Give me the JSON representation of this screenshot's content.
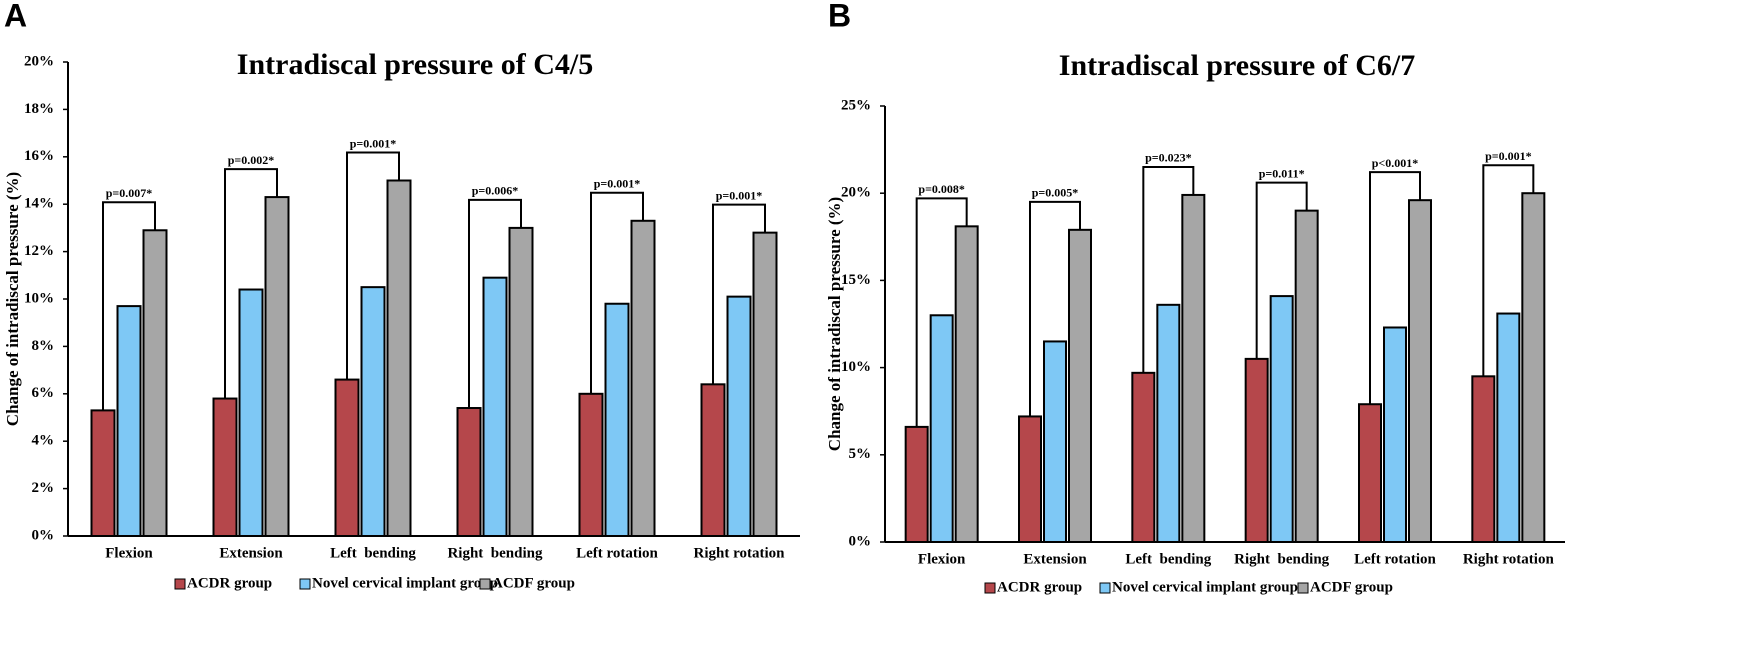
{
  "chart_data": [
    {
      "type": "bar",
      "panel": "A",
      "title": "Intradiscal pressure of C4/5",
      "y_label": "Change of intradiscal pressure (%)",
      "categories": [
        "Flexion",
        "Extension",
        "Left  bending",
        "Right  bending",
        "Left rotation",
        "Right rotation"
      ],
      "annotations": [
        "p=0.007*",
        "p=0.002*",
        "p=0.001*",
        "p=0.006*",
        "p=0.001*",
        "p=0.001*"
      ],
      "series": [
        {
          "name": "ACDR group",
          "color": "#b5474b",
          "values": [
            5.3,
            5.8,
            6.6,
            5.4,
            6.0,
            6.4
          ]
        },
        {
          "name": "Novel cervical implant group",
          "color": "#7ec8f5",
          "values": [
            9.7,
            10.4,
            10.5,
            10.9,
            9.8,
            10.1
          ]
        },
        {
          "name": "ACDF group",
          "color": "#a6a6a6",
          "values": [
            12.9,
            14.3,
            15.0,
            13.0,
            13.3,
            12.8
          ]
        }
      ],
      "ylim": [
        0,
        20
      ],
      "yticks": [
        {
          "value": 0,
          "label": "0%"
        },
        {
          "value": 2,
          "label": "2%"
        },
        {
          "value": 4,
          "label": "4%"
        },
        {
          "value": 6,
          "label": "6%"
        },
        {
          "value": 8,
          "label": "8%"
        },
        {
          "value": 10,
          "label": "10%"
        },
        {
          "value": 12,
          "label": "12%"
        },
        {
          "value": 14,
          "label": "14%"
        },
        {
          "value": 16,
          "label": "16%"
        },
        {
          "value": 18,
          "label": "18%"
        },
        {
          "value": 20,
          "label": "20%"
        }
      ],
      "legend": "bottom"
    },
    {
      "type": "bar",
      "panel": "B",
      "title": "Intradiscal pressure of C6/7",
      "y_label": "Change of intradiscal pressure (%)",
      "categories": [
        "Flexion",
        "Extension",
        "Left  bending",
        "Right  bending",
        "Left rotation",
        "Right rotation"
      ],
      "annotations": [
        "p=0.008*",
        "p=0.005*",
        "p=0.023*",
        "p=0.011*",
        "p<0.001*",
        "p=0.001*"
      ],
      "series": [
        {
          "name": "ACDR group",
          "color": "#b5474b",
          "values": [
            6.6,
            7.2,
            9.7,
            10.5,
            7.9,
            9.5
          ]
        },
        {
          "name": "Novel cervical implant group",
          "color": "#7ec8f5",
          "values": [
            13.0,
            11.5,
            13.6,
            14.1,
            12.3,
            13.1
          ]
        },
        {
          "name": "ACDF group",
          "color": "#a6a6a6",
          "values": [
            18.1,
            17.9,
            19.9,
            19.0,
            19.6,
            20.0
          ]
        }
      ],
      "ylim": [
        0,
        25
      ],
      "yticks": [
        {
          "value": 0,
          "label": "0%"
        },
        {
          "value": 5,
          "label": "5%"
        },
        {
          "value": 10,
          "label": "10%"
        },
        {
          "value": 15,
          "label": "15%"
        },
        {
          "value": 20,
          "label": "20%"
        },
        {
          "value": 25,
          "label": "25%"
        }
      ],
      "legend": "bottom"
    }
  ]
}
